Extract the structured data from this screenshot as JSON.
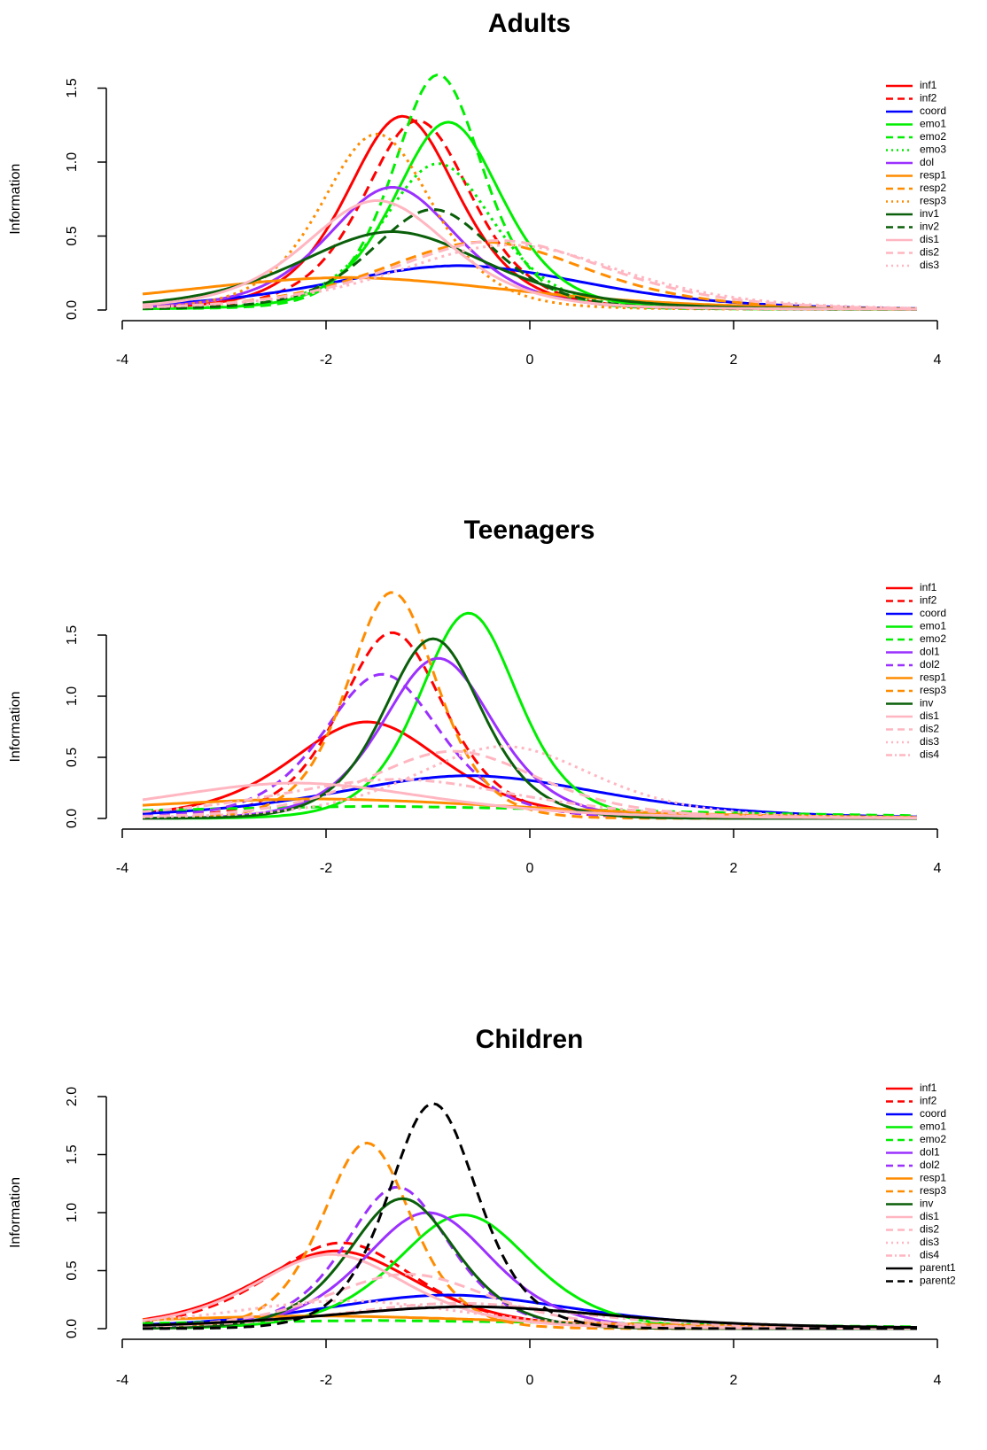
{
  "chart_data": [
    {
      "type": "line",
      "title": "Adults",
      "xlabel": "",
      "ylabel": "Information",
      "xlim": [
        -4,
        4
      ],
      "ylim": [
        0,
        1.5
      ],
      "xticks": [
        "-4",
        "-2",
        "0",
        "2",
        "4"
      ],
      "yticks": [
        "0.0",
        "0.5",
        "1.0",
        "1.5"
      ],
      "legend_position": "top-right",
      "series": [
        {
          "name": "inf1",
          "color": "#ff0000",
          "dash": "solid",
          "peak_x": -1.25,
          "peak_y": 1.28,
          "width": 0.62,
          "tail": 0.03
        },
        {
          "name": "inf2",
          "color": "#ff0000",
          "dash": "dashed",
          "peak_x": -1.1,
          "peak_y": 1.25,
          "width": 0.6,
          "tail": 0.03
        },
        {
          "name": "coord",
          "color": "#0000ff",
          "dash": "solid",
          "peak_x": -0.7,
          "peak_y": 0.28,
          "width": 1.45,
          "tail": 0.02
        },
        {
          "name": "emo1",
          "color": "#00ee00",
          "dash": "solid",
          "peak_x": -0.8,
          "peak_y": 1.25,
          "width": 0.6,
          "tail": 0.02
        },
        {
          "name": "emo2",
          "color": "#00ee00",
          "dash": "dashed",
          "peak_x": -0.9,
          "peak_y": 1.57,
          "width": 0.5,
          "tail": 0.02
        },
        {
          "name": "emo3",
          "color": "#00ee00",
          "dash": "dotted",
          "peak_x": -0.9,
          "peak_y": 0.97,
          "width": 0.62,
          "tail": 0.02
        },
        {
          "name": "dol",
          "color": "#9b30ff",
          "dash": "solid",
          "peak_x": -1.35,
          "peak_y": 0.8,
          "width": 0.72,
          "tail": 0.03
        },
        {
          "name": "resp1",
          "color": "#ff8c00",
          "dash": "solid",
          "peak_x": -1.8,
          "peak_y": 0.2,
          "width": 1.9,
          "tail": 0.02
        },
        {
          "name": "resp2",
          "color": "#ff8c00",
          "dash": "dashed",
          "peak_x": -0.45,
          "peak_y": 0.44,
          "width": 1.15,
          "tail": 0.02
        },
        {
          "name": "resp3",
          "color": "#ff8c00",
          "dash": "dotted",
          "peak_x": -1.5,
          "peak_y": 1.17,
          "width": 0.62,
          "tail": 0.02
        },
        {
          "name": "inv1",
          "color": "#0a5f0a",
          "dash": "solid",
          "peak_x": -1.35,
          "peak_y": 0.5,
          "width": 1.05,
          "tail": 0.03
        },
        {
          "name": "inv2",
          "color": "#0a5f0a",
          "dash": "dashed",
          "peak_x": -0.95,
          "peak_y": 0.66,
          "width": 0.68,
          "tail": 0.02
        },
        {
          "name": "dis1",
          "color": "#ffb6c1",
          "dash": "solid",
          "peak_x": -1.5,
          "peak_y": 0.71,
          "width": 0.8,
          "tail": 0.03
        },
        {
          "name": "dis2",
          "color": "#ffb6c1",
          "dash": "dashed",
          "peak_x": -0.3,
          "peak_y": 0.45,
          "width": 1.2,
          "tail": 0.02
        },
        {
          "name": "dis3",
          "color": "#ffb6c1",
          "dash": "dotted",
          "peak_x": -0.2,
          "peak_y": 0.42,
          "width": 1.25,
          "tail": 0.02
        }
      ]
    },
    {
      "type": "line",
      "title": "Teenagers",
      "xlabel": "",
      "ylabel": "Information",
      "xlim": [
        -4,
        4
      ],
      "ylim": [
        0,
        1.5
      ],
      "xticks": [
        "-4",
        "-2",
        "0",
        "2",
        "4"
      ],
      "yticks": [
        "0.0",
        "0.5",
        "1.0",
        "1.5"
      ],
      "legend_position": "top-right",
      "series": [
        {
          "name": "inf1",
          "color": "#ff0000",
          "dash": "solid",
          "peak_x": -1.6,
          "peak_y": 0.77,
          "width": 0.85,
          "tail": 0.02
        },
        {
          "name": "inf2",
          "color": "#ff0000",
          "dash": "dashed",
          "peak_x": -1.35,
          "peak_y": 1.5,
          "width": 0.58,
          "tail": 0.02
        },
        {
          "name": "coord",
          "color": "#0000ff",
          "dash": "solid",
          "peak_x": -0.6,
          "peak_y": 0.33,
          "width": 1.5,
          "tail": 0.02
        },
        {
          "name": "emo1",
          "color": "#00ee00",
          "dash": "solid",
          "peak_x": -0.6,
          "peak_y": 1.68,
          "width": 0.55,
          "tail": 0.0
        },
        {
          "name": "emo2",
          "color": "#00ee00",
          "dash": "dashed",
          "peak_x": -1.5,
          "peak_y": 0.07,
          "width": 3.5,
          "tail": 0.03
        },
        {
          "name": "dol1",
          "color": "#9b30ff",
          "dash": "solid",
          "peak_x": -0.9,
          "peak_y": 1.31,
          "width": 0.62,
          "tail": 0.0
        },
        {
          "name": "dol2",
          "color": "#9b30ff",
          "dash": "dashed",
          "peak_x": -1.45,
          "peak_y": 1.16,
          "width": 0.65,
          "tail": 0.02
        },
        {
          "name": "resp1",
          "color": "#ff8c00",
          "dash": "solid",
          "peak_x": -2.1,
          "peak_y": 0.14,
          "width": 2.3,
          "tail": 0.02
        },
        {
          "name": "resp3",
          "color": "#ff8c00",
          "dash": "dashed",
          "peak_x": -1.35,
          "peak_y": 1.85,
          "width": 0.5,
          "tail": 0.0
        },
        {
          "name": "inv",
          "color": "#0a5f0a",
          "dash": "solid",
          "peak_x": -0.95,
          "peak_y": 1.47,
          "width": 0.55,
          "tail": 0.0
        },
        {
          "name": "dis1",
          "color": "#ffb6c1",
          "dash": "solid",
          "peak_x": -2.3,
          "peak_y": 0.27,
          "width": 1.5,
          "tail": 0.02
        },
        {
          "name": "dis2",
          "color": "#ffb6c1",
          "dash": "dashed",
          "peak_x": -0.75,
          "peak_y": 0.53,
          "width": 0.95,
          "tail": 0.02
        },
        {
          "name": "dis3",
          "color": "#ffb6c1",
          "dash": "dotted",
          "peak_x": -0.25,
          "peak_y": 0.57,
          "width": 1.0,
          "tail": 0.02
        },
        {
          "name": "dis4",
          "color": "#ffb6c1",
          "dash": "dashdot",
          "peak_x": -1.3,
          "peak_y": 0.3,
          "width": 1.35,
          "tail": 0.02
        }
      ]
    },
    {
      "type": "line",
      "title": "Children",
      "xlabel": "",
      "ylabel": "Information",
      "xlim": [
        -4,
        4
      ],
      "ylim": [
        0,
        2.0
      ],
      "xticks": [
        "-4",
        "-2",
        "0",
        "2",
        "4"
      ],
      "yticks": [
        "0.0",
        "0.5",
        "1.0",
        "1.5",
        "2.0"
      ],
      "legend_position": "top-right",
      "series": [
        {
          "name": "inf1",
          "color": "#ff0000",
          "dash": "solid",
          "peak_x": -1.9,
          "peak_y": 0.65,
          "width": 0.9,
          "tail": 0.02
        },
        {
          "name": "inf2",
          "color": "#ff0000",
          "dash": "dashed",
          "peak_x": -1.85,
          "peak_y": 0.72,
          "width": 0.82,
          "tail": 0.02
        },
        {
          "name": "coord",
          "color": "#0000ff",
          "dash": "solid",
          "peak_x": -0.8,
          "peak_y": 0.27,
          "width": 1.4,
          "tail": 0.02
        },
        {
          "name": "emo1",
          "color": "#00ee00",
          "dash": "solid",
          "peak_x": -0.65,
          "peak_y": 0.98,
          "width": 0.75,
          "tail": 0.0
        },
        {
          "name": "emo2",
          "color": "#00ee00",
          "dash": "dashed",
          "peak_x": -1.5,
          "peak_y": 0.05,
          "width": 3.5,
          "tail": 0.02
        },
        {
          "name": "dol1",
          "color": "#9b30ff",
          "dash": "solid",
          "peak_x": -1.0,
          "peak_y": 1.0,
          "width": 0.72,
          "tail": 0.0
        },
        {
          "name": "dol2",
          "color": "#9b30ff",
          "dash": "dashed",
          "peak_x": -1.3,
          "peak_y": 1.2,
          "width": 0.58,
          "tail": 0.02
        },
        {
          "name": "resp1",
          "color": "#ff8c00",
          "dash": "solid",
          "peak_x": -2.1,
          "peak_y": 0.09,
          "width": 2.4,
          "tail": 0.02
        },
        {
          "name": "resp3",
          "color": "#ff8c00",
          "dash": "dashed",
          "peak_x": -1.6,
          "peak_y": 1.6,
          "width": 0.5,
          "tail": 0.0
        },
        {
          "name": "inv",
          "color": "#0a5f0a",
          "dash": "solid",
          "peak_x": -1.25,
          "peak_y": 1.12,
          "width": 0.6,
          "tail": 0.0
        },
        {
          "name": "dis1",
          "color": "#ffb6c1",
          "dash": "solid",
          "peak_x": -1.95,
          "peak_y": 0.62,
          "width": 0.85,
          "tail": 0.02
        },
        {
          "name": "dis2",
          "color": "#ffb6c1",
          "dash": "dashed",
          "peak_x": -1.2,
          "peak_y": 0.45,
          "width": 0.9,
          "tail": 0.02
        },
        {
          "name": "dis3",
          "color": "#ffb6c1",
          "dash": "dotted",
          "peak_x": -1.8,
          "peak_y": 0.22,
          "width": 1.3,
          "tail": 0.02
        },
        {
          "name": "dis4",
          "color": "#ffb6c1",
          "dash": "dashdot",
          "peak_x": -0.7,
          "peak_y": 0.2,
          "width": 1.3,
          "tail": 0.02
        },
        {
          "name": "parent1",
          "color": "#000000",
          "dash": "solid",
          "peak_x": -0.6,
          "peak_y": 0.17,
          "width": 1.6,
          "tail": 0.02
        },
        {
          "name": "parent2",
          "color": "#000000",
          "dash": "dashed",
          "peak_x": -0.95,
          "peak_y": 1.94,
          "width": 0.5,
          "tail": 0.0
        }
      ]
    }
  ]
}
